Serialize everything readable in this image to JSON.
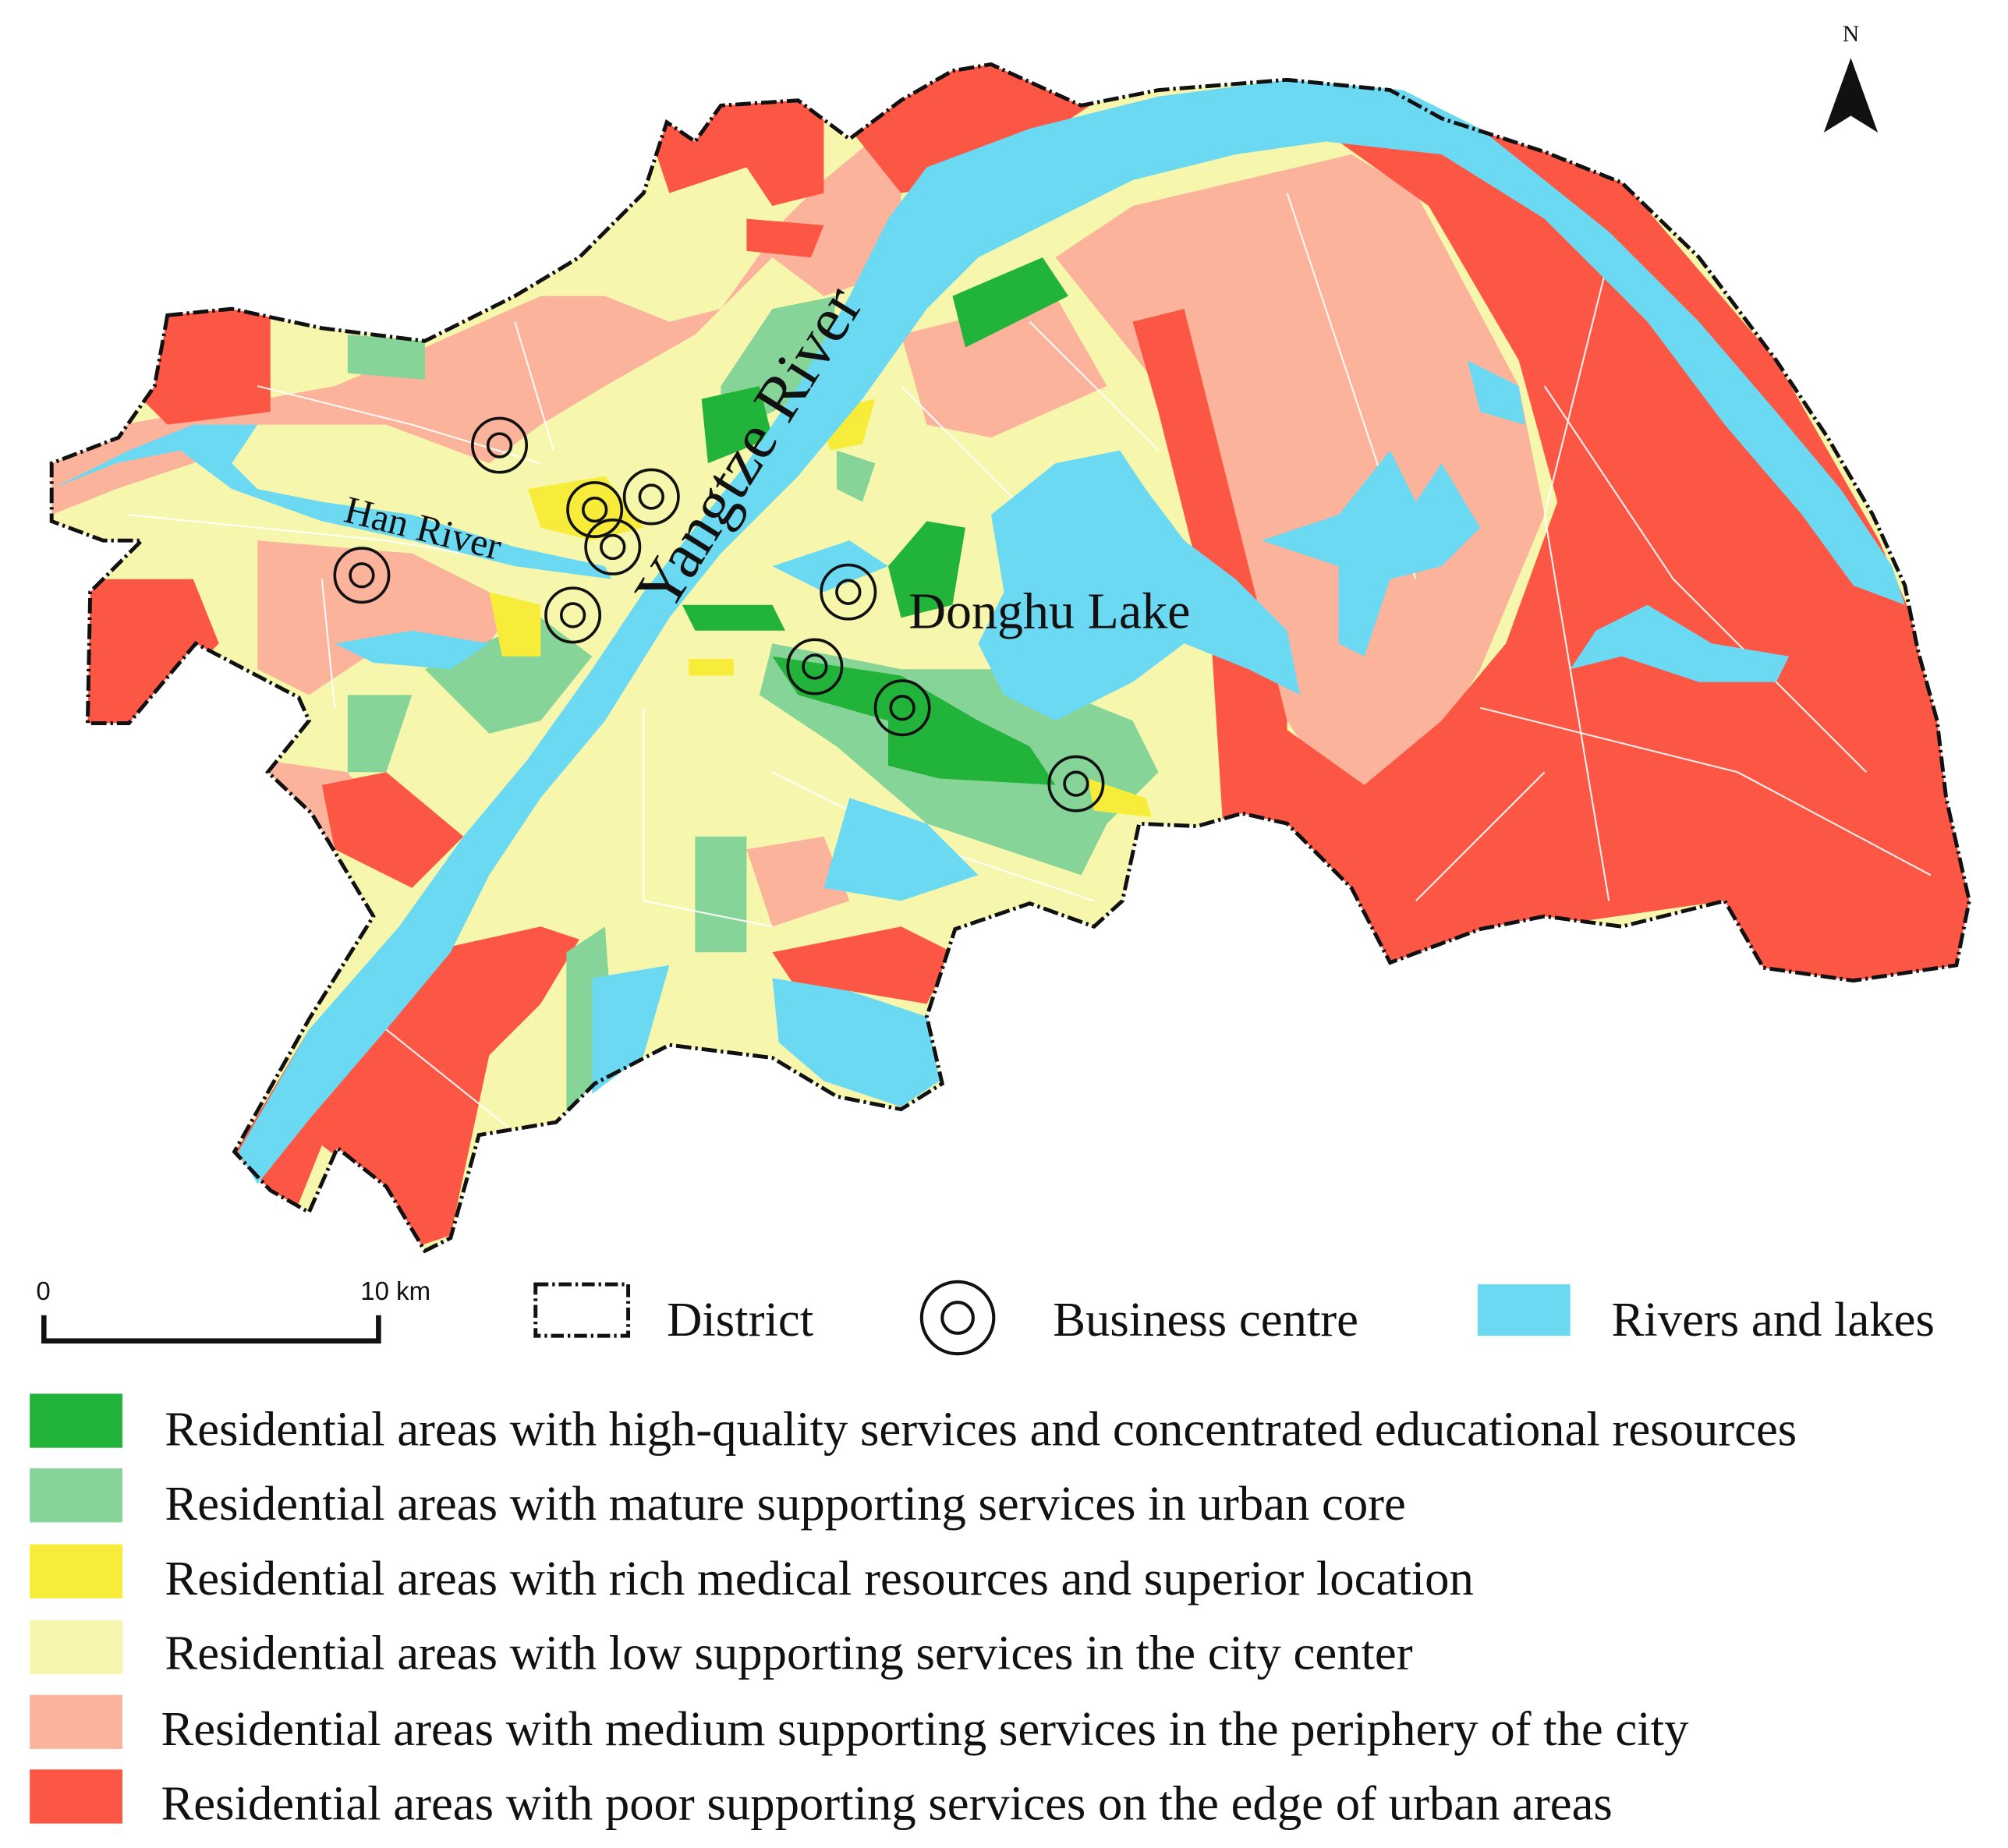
{
  "map": {
    "north_label": "N",
    "labels": {
      "yangtze": "Yangtze River",
      "han": "Han River",
      "donghu": "Donghu Lake"
    }
  },
  "colors": {
    "high_quality": "#22b43a",
    "mature_core": "#86d498",
    "medical": "#f8ec3a",
    "low_center": "#f6f7ad",
    "medium_periphery": "#fcb39c",
    "poor_edge": "#fc5744",
    "water": "#6cd9f2",
    "district_line": "#111111"
  },
  "scale_bar": {
    "start": "0",
    "end": "10 km"
  },
  "legend_top": {
    "district": "District",
    "business": "Business centre",
    "water": "Rivers and lakes"
  },
  "legend": [
    {
      "label": "Residential areas with high-quality services and concentrated educational resources",
      "color": "#22b43a"
    },
    {
      "label": "Residential areas with mature supporting services in urban core",
      "color": "#86d498"
    },
    {
      "label": "Residential areas with rich medical resources and superior location",
      "color": "#f8ec3a"
    },
    {
      "label": "Residential areas with low supporting services in the city center",
      "color": "#f6f7ad"
    },
    {
      "label": "Residential areas with medium supporting services in the periphery of the city",
      "color": "#fcb39c"
    },
    {
      "label": "Residential areas with poor supporting services on the edge of urban areas",
      "color": "#fc5744"
    }
  ]
}
